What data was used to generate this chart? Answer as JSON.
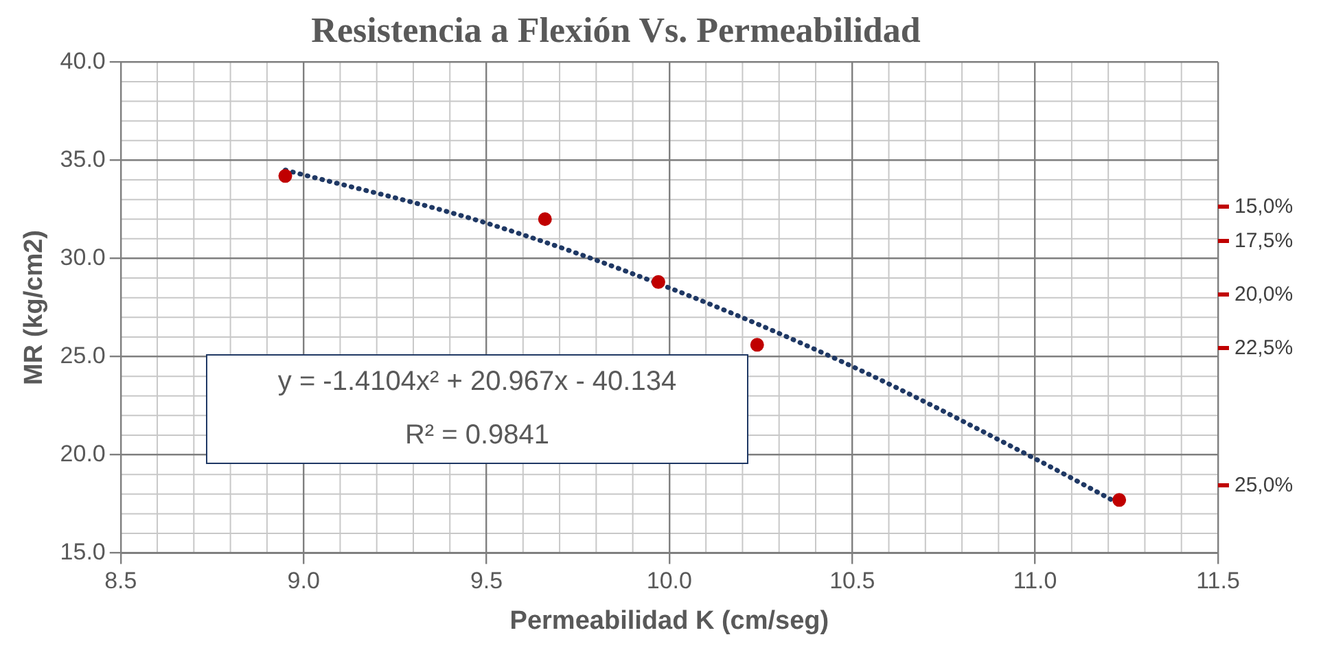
{
  "chart_data": {
    "type": "scatter",
    "title": "Resistencia a Flexión Vs. Permeabilidad",
    "xlabel": "Permeabilidad K (cm/seg)",
    "ylabel": "MR (kg/cm2)",
    "xlim": [
      8.5,
      11.5
    ],
    "xticks": [
      {
        "value": 8.5,
        "label": "8.5"
      },
      {
        "value": 9,
        "label": "9.0"
      },
      {
        "value": 9.5,
        "label": "9.5"
      },
      {
        "value": 10,
        "label": "10.0"
      },
      {
        "value": 10.5,
        "label": "10.5"
      },
      {
        "value": 11,
        "label": "11.0"
      },
      {
        "value": 11.5,
        "label": "11.5"
      }
    ],
    "ylim": [
      15,
      40
    ],
    "yticks": [
      {
        "value": 15,
        "label": "15.0"
      },
      {
        "value": 20,
        "label": "20.0"
      },
      {
        "value": 25,
        "label": "25.0"
      },
      {
        "value": 30,
        "label": "30.0"
      },
      {
        "value": 35,
        "label": "35.0"
      },
      {
        "value": 40,
        "label": "40.0"
      }
    ],
    "grid": true,
    "legend": false,
    "series": [
      {
        "color": "#c00000",
        "marker": "circle",
        "x": [
          8.95,
          9.66,
          9.97,
          10.24,
          11.23
        ],
        "values": [
          34.2,
          32.0,
          28.8,
          25.6,
          17.7
        ]
      },
      {
        "type": "line",
        "color": "#1f3864",
        "marker": "none",
        "line_style": "dotted",
        "x": [
          8.95,
          9.5,
          10,
          10.5,
          11,
          11.23
        ],
        "values": [
          34.5,
          31.8,
          28.5,
          24.5,
          19.8,
          17.5
        ]
      }
    ],
    "annotations": [
      "y = -1.4104x² + 20.967x - 40.134",
      "R² = 0.9841",
      "15,0%",
      "17,5%",
      "20,0%",
      "22,5%",
      "25,0%"
    ]
  }
}
